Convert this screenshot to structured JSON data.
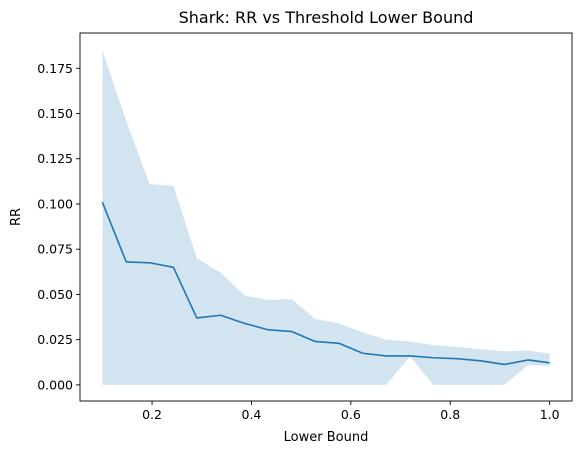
{
  "chart_data": {
    "type": "line",
    "title": "Shark: RR vs Threshold Lower Bound",
    "xlabel": "Lower Bound",
    "ylabel": "RR",
    "xlim": [
      0.055,
      1.045
    ],
    "ylim": [
      -0.0089,
      0.1945
    ],
    "xticks": [
      0.2,
      0.4,
      0.6,
      0.8,
      1.0
    ],
    "xtick_labels": [
      "0.2",
      "0.4",
      "0.6",
      "0.8",
      "1.0"
    ],
    "yticks": [
      0.0,
      0.025,
      0.05,
      0.075,
      0.1,
      0.125,
      0.15,
      0.175
    ],
    "ytick_labels": [
      "0.000",
      "0.025",
      "0.050",
      "0.075",
      "0.100",
      "0.125",
      "0.150",
      "0.175"
    ],
    "grid": false,
    "series": [
      {
        "x": [
          0.1,
          0.148,
          0.195,
          0.243,
          0.29,
          0.338,
          0.386,
          0.433,
          0.481,
          0.528,
          0.576,
          0.624,
          0.671,
          0.719,
          0.766,
          0.814,
          0.861,
          0.909,
          0.957,
          1.0
        ],
        "values": [
          0.101,
          0.068,
          0.0675,
          0.065,
          0.037,
          0.0385,
          0.034,
          0.0305,
          0.0295,
          0.024,
          0.023,
          0.0175,
          0.016,
          0.016,
          0.015,
          0.0145,
          0.0133,
          0.0113,
          0.0138,
          0.0122
        ],
        "upper": [
          0.185,
          0.146,
          0.111,
          0.11,
          0.07,
          0.062,
          0.0495,
          0.047,
          0.0475,
          0.0365,
          0.034,
          0.029,
          0.025,
          0.024,
          0.022,
          0.021,
          0.0197,
          0.0185,
          0.019,
          0.0172
        ],
        "lower": [
          0.0,
          0.0,
          0.0,
          0.0,
          0.0,
          0.0,
          0.0,
          0.0,
          0.0,
          0.0,
          0.0,
          0.0,
          0.0,
          0.0157,
          0.0,
          0.0,
          0.0,
          0.0,
          0.011,
          0.0105
        ]
      }
    ]
  },
  "colors": {
    "line": "#1f77b4",
    "band": "#1f77b4",
    "band_opacity": 0.2,
    "axes": "#000000",
    "background": "#ffffff"
  }
}
